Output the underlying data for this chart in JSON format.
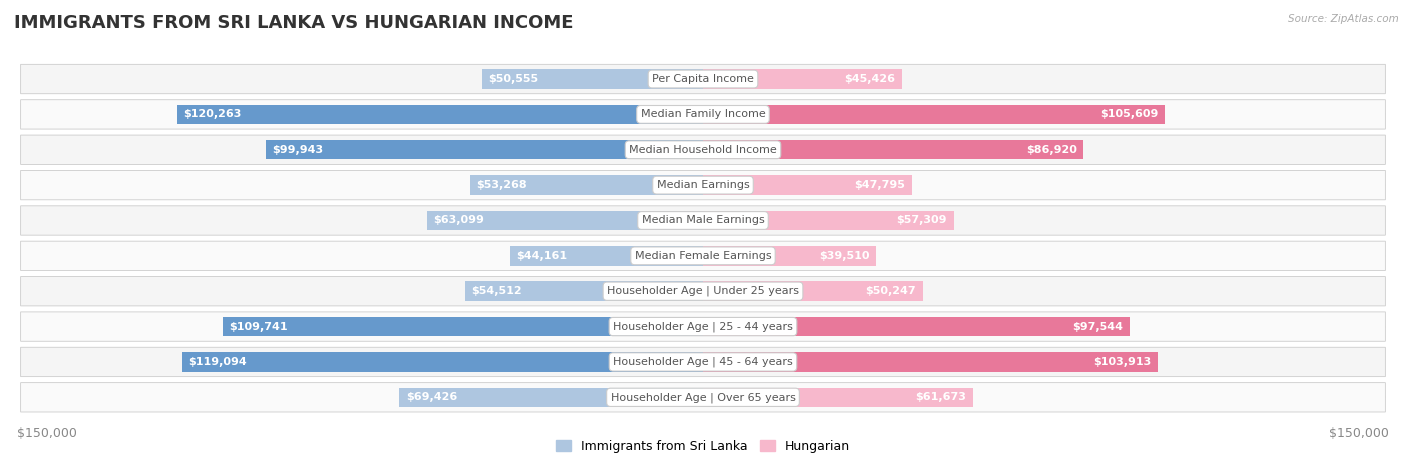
{
  "title": "IMMIGRANTS FROM SRI LANKA VS HUNGARIAN INCOME",
  "source": "Source: ZipAtlas.com",
  "categories": [
    "Per Capita Income",
    "Median Family Income",
    "Median Household Income",
    "Median Earnings",
    "Median Male Earnings",
    "Median Female Earnings",
    "Householder Age | Under 25 years",
    "Householder Age | 25 - 44 years",
    "Householder Age | 45 - 64 years",
    "Householder Age | Over 65 years"
  ],
  "sri_lanka_values": [
    50555,
    120263,
    99943,
    53268,
    63099,
    44161,
    54512,
    109741,
    119094,
    69426
  ],
  "hungarian_values": [
    45426,
    105609,
    86920,
    47795,
    57309,
    39510,
    50247,
    97544,
    103913,
    61673
  ],
  "sri_lanka_labels": [
    "$50,555",
    "$120,263",
    "$99,943",
    "$53,268",
    "$63,099",
    "$44,161",
    "$54,512",
    "$109,741",
    "$119,094",
    "$69,426"
  ],
  "hungarian_labels": [
    "$45,426",
    "$105,609",
    "$86,920",
    "$47,795",
    "$57,309",
    "$39,510",
    "$50,247",
    "$97,544",
    "$103,913",
    "$61,673"
  ],
  "sri_lanka_color_light": "#aec6e0",
  "sri_lanka_color_dark": "#6699cc",
  "hungarian_color_light": "#f7b8cc",
  "hungarian_color_dark": "#e8789a",
  "max_value": 150000,
  "background_color": "#ffffff",
  "row_bg_odd": "#f5f5f5",
  "row_bg_even": "#fafafa",
  "title_fontsize": 13,
  "label_fontsize": 8,
  "category_fontsize": 8,
  "legend_fontsize": 9,
  "axis_label_fontsize": 9,
  "inside_label_threshold": 25000
}
